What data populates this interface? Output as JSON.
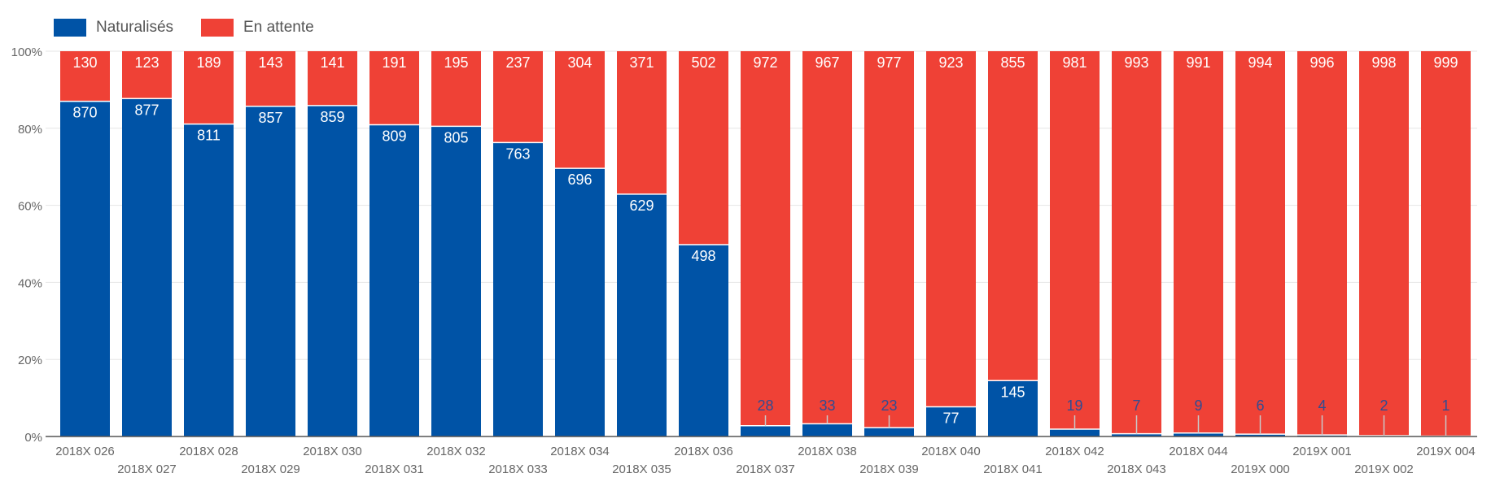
{
  "chart_data": {
    "type": "bar",
    "stacked": true,
    "normalized": true,
    "categories": [
      "2018X 026",
      "2018X 027",
      "2018X 028",
      "2018X 029",
      "2018X 030",
      "2018X 031",
      "2018X 032",
      "2018X 033",
      "2018X 034",
      "2018X 035",
      "2018X 036",
      "2018X 037",
      "2018X 038",
      "2018X 039",
      "2018X 040",
      "2018X 041",
      "2018X 042",
      "2018X 043",
      "2018X 044",
      "2019X 000",
      "2019X 001",
      "2019X 002",
      "2019X 004"
    ],
    "series": [
      {
        "name": "Naturalisés",
        "color": "#0053A6",
        "values": [
          870,
          877,
          811,
          857,
          859,
          809,
          805,
          763,
          696,
          629,
          498,
          28,
          33,
          23,
          77,
          145,
          19,
          7,
          9,
          6,
          4,
          2,
          1
        ]
      },
      {
        "name": "En attente",
        "color": "#EF4136",
        "values": [
          130,
          123,
          189,
          143,
          141,
          191,
          195,
          237,
          304,
          371,
          502,
          972,
          967,
          977,
          923,
          855,
          981,
          993,
          991,
          994,
          996,
          998,
          999
        ]
      }
    ],
    "yticks": [
      "0%",
      "20%",
      "40%",
      "60%",
      "80%",
      "100%"
    ],
    "ylim": [
      0,
      100
    ],
    "grid": true,
    "legend_position": "top-left"
  }
}
